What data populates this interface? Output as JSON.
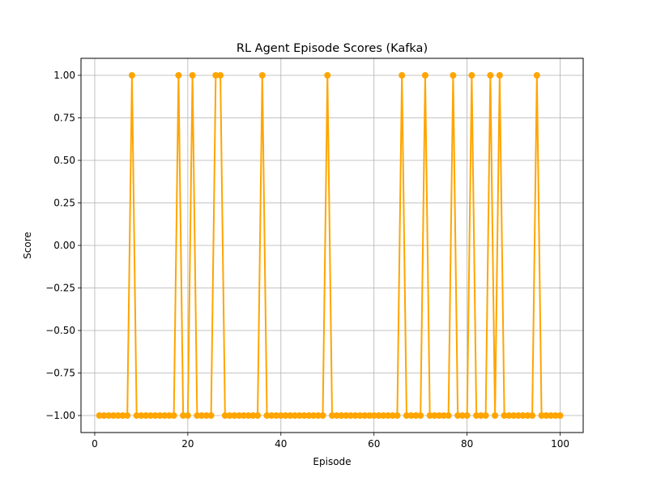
{
  "chart_data": {
    "type": "line",
    "title": "RL Agent Episode Scores (Kafka)",
    "xlabel": "Episode",
    "ylabel": "Score",
    "xlim": [
      -2.95,
      104.95
    ],
    "ylim": [
      -1.1,
      1.1
    ],
    "xticks": [
      0,
      20,
      40,
      60,
      80,
      100
    ],
    "yticks": [
      -1.0,
      -0.75,
      -0.5,
      -0.25,
      0.0,
      0.25,
      0.5,
      0.75,
      1.0
    ],
    "xtick_labels": [
      "0",
      "20",
      "40",
      "60",
      "80",
      "100"
    ],
    "ytick_labels": [
      "−1.00",
      "−0.75",
      "−0.50",
      "−0.25",
      "0.00",
      "0.25",
      "0.50",
      "0.75",
      "1.00"
    ],
    "grid": true,
    "series": [
      {
        "color": "#ffa500",
        "marker": "circle",
        "x": [
          1,
          2,
          3,
          4,
          5,
          6,
          7,
          8,
          9,
          10,
          11,
          12,
          13,
          14,
          15,
          16,
          17,
          18,
          19,
          20,
          21,
          22,
          23,
          24,
          25,
          26,
          27,
          28,
          29,
          30,
          31,
          32,
          33,
          34,
          35,
          36,
          37,
          38,
          39,
          40,
          41,
          42,
          43,
          44,
          45,
          46,
          47,
          48,
          49,
          50,
          51,
          52,
          53,
          54,
          55,
          56,
          57,
          58,
          59,
          60,
          61,
          62,
          63,
          64,
          65,
          66,
          67,
          68,
          69,
          70,
          71,
          72,
          73,
          74,
          75,
          76,
          77,
          78,
          79,
          80,
          81,
          82,
          83,
          84,
          85,
          86,
          87,
          88,
          89,
          90,
          91,
          92,
          93,
          94,
          95,
          96,
          97,
          98,
          99,
          100
        ],
        "values": [
          -1,
          -1,
          -1,
          -1,
          -1,
          -1,
          -1,
          1,
          -1,
          -1,
          -1,
          -1,
          -1,
          -1,
          -1,
          -1,
          -1,
          1,
          -1,
          -1,
          1,
          -1,
          -1,
          -1,
          -1,
          1,
          1,
          -1,
          -1,
          -1,
          -1,
          -1,
          -1,
          -1,
          -1,
          1,
          -1,
          -1,
          -1,
          -1,
          -1,
          -1,
          -1,
          -1,
          -1,
          -1,
          -1,
          -1,
          -1,
          1,
          -1,
          -1,
          -1,
          -1,
          -1,
          -1,
          -1,
          -1,
          -1,
          -1,
          -1,
          -1,
          -1,
          -1,
          -1,
          1,
          -1,
          -1,
          -1,
          -1,
          1,
          -1,
          -1,
          -1,
          -1,
          -1,
          1,
          -1,
          -1,
          -1,
          1,
          -1,
          -1,
          -1,
          1,
          -1,
          1,
          -1,
          -1,
          -1,
          -1,
          -1,
          -1,
          -1,
          1,
          -1,
          -1,
          -1,
          -1,
          -1
        ]
      }
    ]
  }
}
